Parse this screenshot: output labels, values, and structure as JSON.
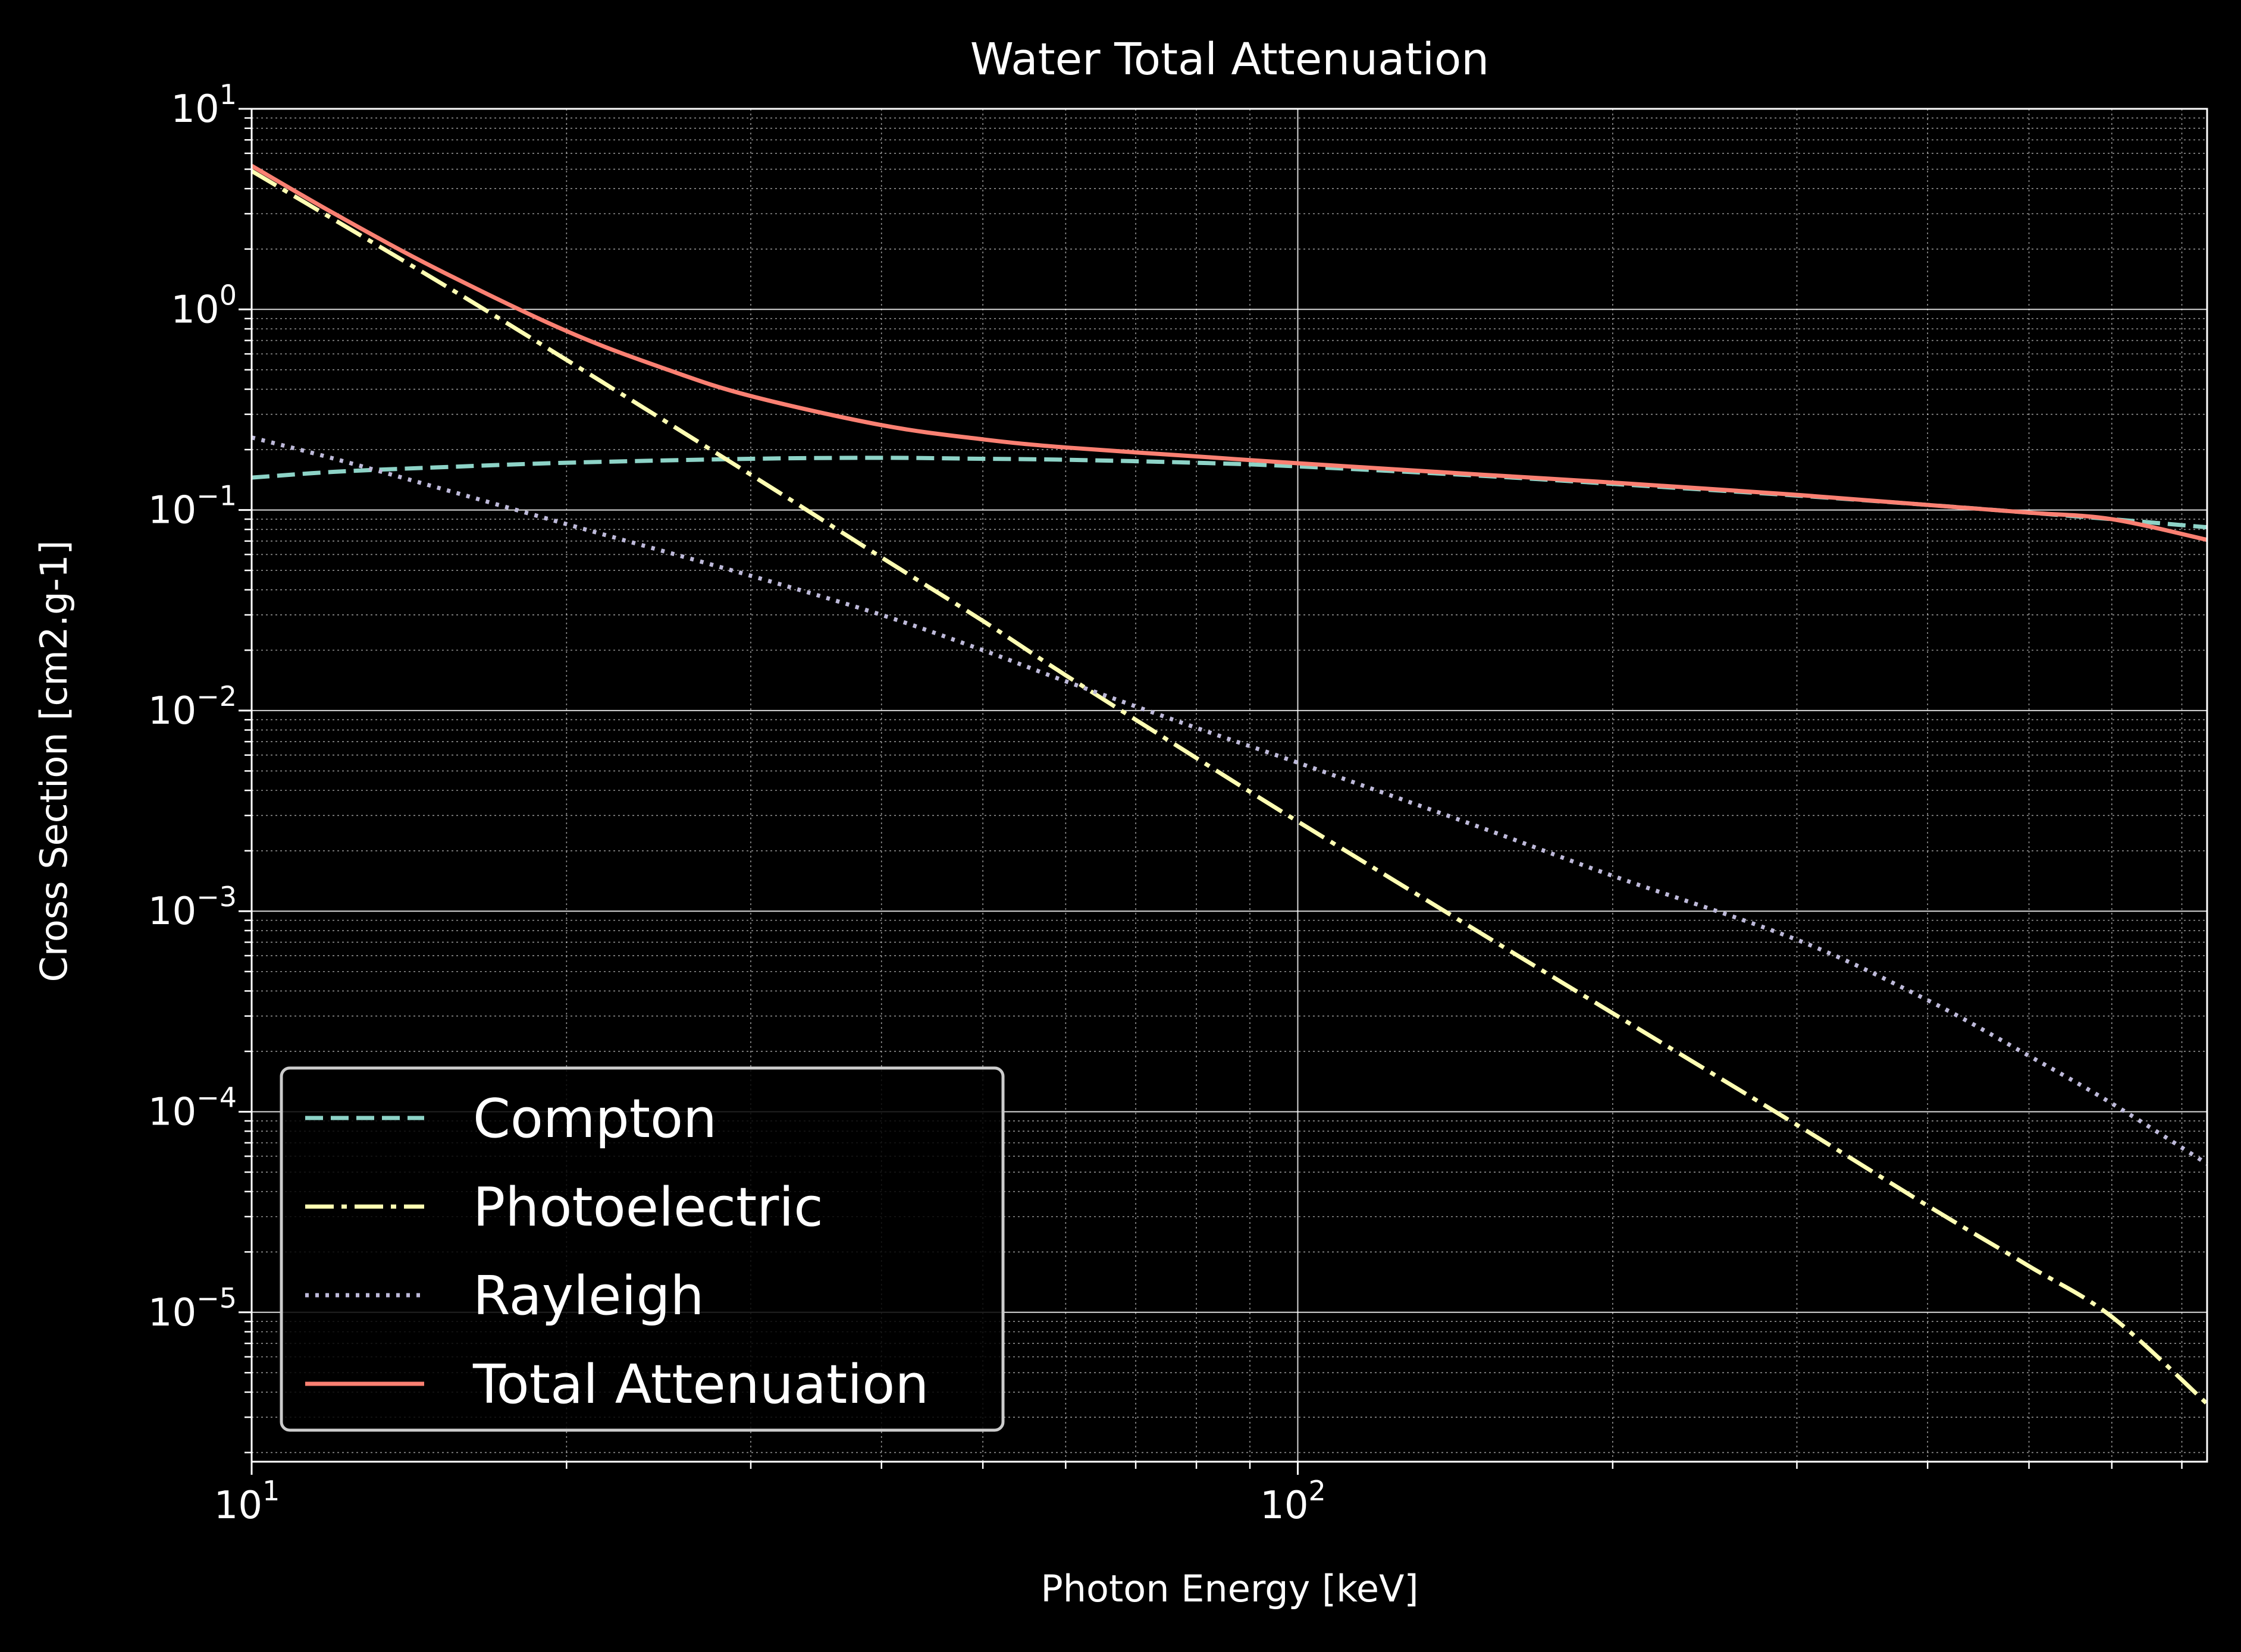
{
  "chart_data": {
    "type": "line",
    "title": "Water Total Attenuation",
    "xlabel": "Photon Energy [keV]",
    "ylabel": "Cross Section [cm2.g-1]",
    "x_scale": "log",
    "y_scale": "log",
    "xlim": [
      10,
      740
    ],
    "ylim": [
      1.8e-06,
      10
    ],
    "grid": "major and minor",
    "legend_position": "lower-left",
    "x_ticks": [
      {
        "value": 10,
        "base": "10",
        "exp": "1"
      },
      {
        "value": 100,
        "base": "10",
        "exp": "2"
      }
    ],
    "y_ticks": [
      {
        "value": 10,
        "base": "10",
        "exp": "1"
      },
      {
        "value": 1,
        "base": "10",
        "exp": "0"
      },
      {
        "value": 0.1,
        "base": "10",
        "exp": "−1"
      },
      {
        "value": 0.01,
        "base": "10",
        "exp": "−2"
      },
      {
        "value": 0.001,
        "base": "10",
        "exp": "−3"
      },
      {
        "value": 0.0001,
        "base": "10",
        "exp": "−4"
      },
      {
        "value": 1e-05,
        "base": "10",
        "exp": "−5"
      }
    ],
    "series": [
      {
        "name": "Compton",
        "color": "#8dd3c7",
        "style": "dashed",
        "points": [
          [
            10,
            0.145
          ],
          [
            12,
            0.155
          ],
          [
            15,
            0.163
          ],
          [
            20,
            0.172
          ],
          [
            30,
            0.18
          ],
          [
            40,
            0.182
          ],
          [
            50,
            0.18
          ],
          [
            60,
            0.178
          ],
          [
            80,
            0.172
          ],
          [
            100,
            0.165
          ],
          [
            150,
            0.148
          ],
          [
            200,
            0.135
          ],
          [
            300,
            0.118
          ],
          [
            400,
            0.106
          ],
          [
            500,
            0.097
          ],
          [
            600,
            0.09
          ],
          [
            740,
            0.082
          ]
        ]
      },
      {
        "name": "Photoelectric",
        "color": "#ffffb3",
        "style": "dashdot",
        "points": [
          [
            10,
            4.9
          ],
          [
            15,
            1.4
          ],
          [
            20,
            0.56
          ],
          [
            30,
            0.15
          ],
          [
            40,
            0.058
          ],
          [
            50,
            0.028
          ],
          [
            60,
            0.015
          ],
          [
            80,
            0.0058
          ],
          [
            100,
            0.0028
          ],
          [
            150,
            0.00077
          ],
          [
            200,
            0.00031
          ],
          [
            300,
            8.6e-05
          ],
          [
            400,
            3.4e-05
          ],
          [
            500,
            1.7e-05
          ],
          [
            600,
            9.5e-06
          ],
          [
            740,
            3.5e-06
          ]
        ]
      },
      {
        "name": "Rayleigh",
        "color": "#bebada",
        "style": "dotted",
        "points": [
          [
            10,
            0.23
          ],
          [
            12,
            0.18
          ],
          [
            15,
            0.13
          ],
          [
            20,
            0.085
          ],
          [
            30,
            0.047
          ],
          [
            40,
            0.03
          ],
          [
            50,
            0.02
          ],
          [
            60,
            0.014
          ],
          [
            80,
            0.0082
          ],
          [
            100,
            0.0055
          ],
          [
            150,
            0.0026
          ],
          [
            200,
            0.0015
          ],
          [
            300,
            0.00072
          ],
          [
            400,
            0.00036
          ],
          [
            500,
            0.00019
          ],
          [
            600,
            0.00011
          ],
          [
            740,
            5.5e-05
          ]
        ]
      },
      {
        "name": "Total Attenuation",
        "color": "#fb8072",
        "style": "solid",
        "points": [
          [
            10,
            5.2
          ],
          [
            12,
            3.0
          ],
          [
            15,
            1.6
          ],
          [
            20,
            0.78
          ],
          [
            25,
            0.5
          ],
          [
            30,
            0.37
          ],
          [
            40,
            0.265
          ],
          [
            50,
            0.225
          ],
          [
            60,
            0.205
          ],
          [
            80,
            0.185
          ],
          [
            100,
            0.171
          ],
          [
            150,
            0.15
          ],
          [
            200,
            0.137
          ],
          [
            300,
            0.119
          ],
          [
            400,
            0.106
          ],
          [
            500,
            0.097
          ],
          [
            600,
            0.09
          ],
          [
            740,
            0.071
          ]
        ]
      }
    ]
  }
}
